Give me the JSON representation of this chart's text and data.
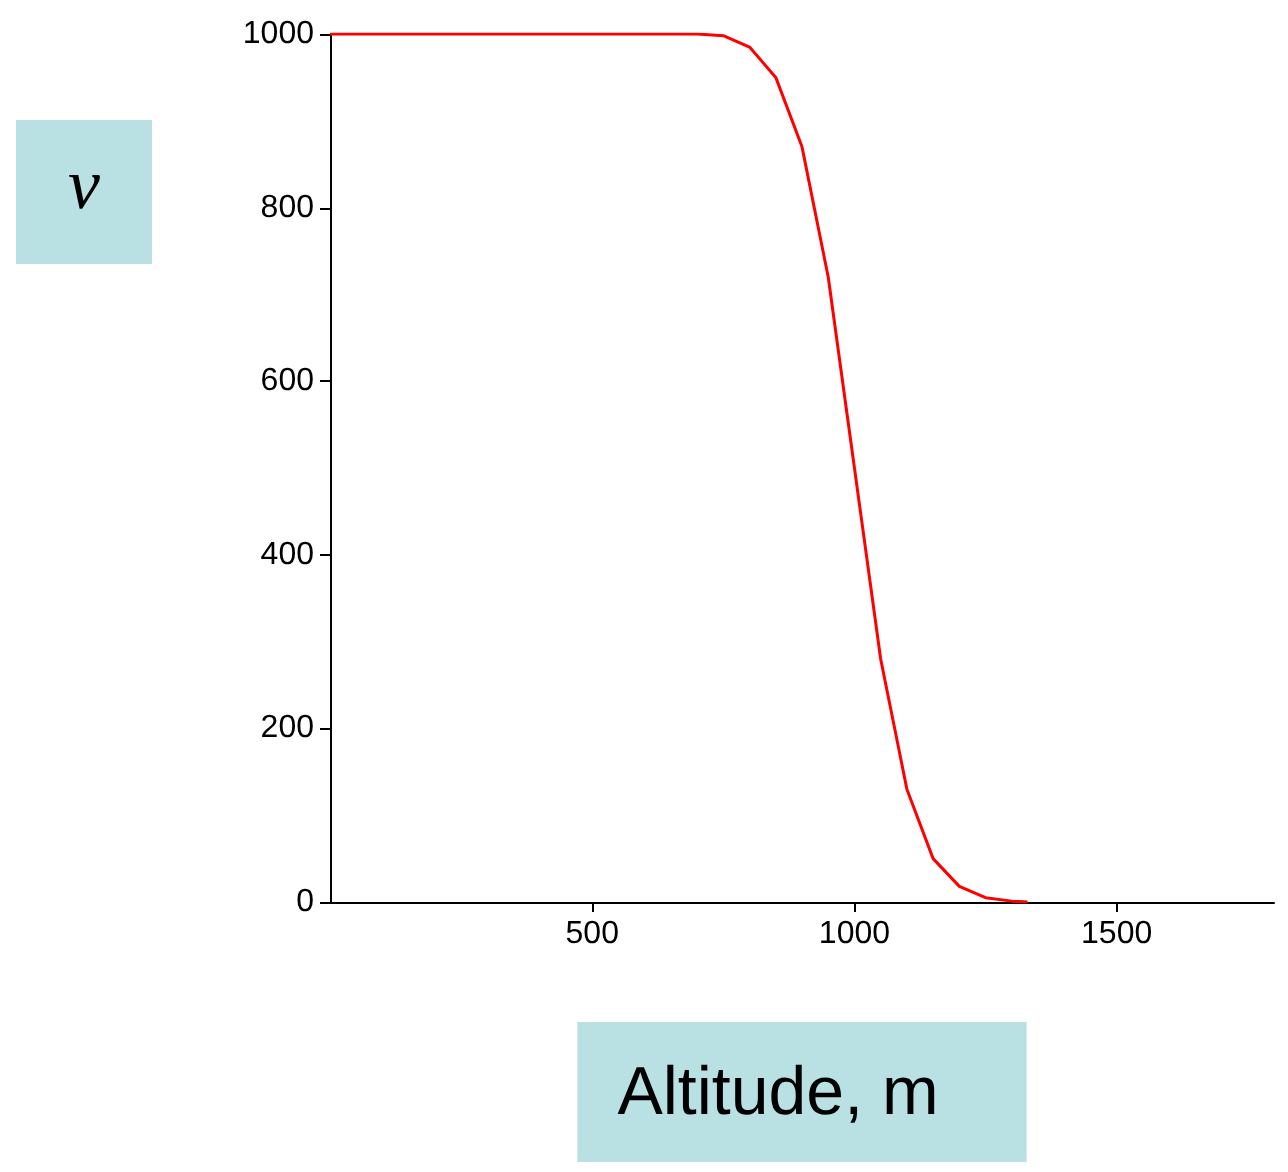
{
  "chart_data": {
    "type": "line",
    "xlabel": "Altitude, m",
    "ylabel": "ν",
    "series": [
      {
        "color": "#ff0000",
        "x": [
          0,
          700,
          750,
          800,
          850,
          900,
          950,
          1000,
          1050,
          1100,
          1150,
          1200,
          1250,
          1300,
          1330
        ],
        "values": [
          1000,
          1000,
          998,
          985,
          950,
          870,
          720,
          500,
          280,
          130,
          50,
          18,
          5,
          1,
          0
        ]
      }
    ],
    "xlim": [
      0,
      1800
    ],
    "xticks": [
      500,
      1000,
      1500
    ],
    "ylim": [
      0,
      1000
    ],
    "yticks": [
      0,
      200,
      400,
      600,
      800,
      1000
    ],
    "grid": false,
    "marker": "none",
    "line_style": "solid"
  }
}
